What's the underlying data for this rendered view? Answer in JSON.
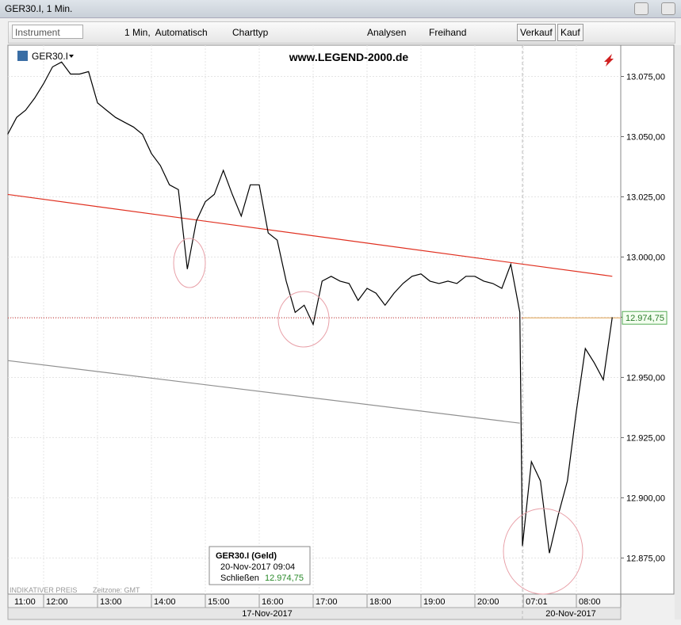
{
  "window": {
    "title": "GER30.I, 1 Min."
  },
  "toolbar": {
    "instrument": "Instrument",
    "interval": "1 Min,  Automatisch",
    "chart_type": "Charttyp",
    "analyses": "Analysen",
    "freehand": "Freihand",
    "sell": "Verkauf",
    "buy": "Kauf"
  },
  "chart_data": {
    "type": "line",
    "watermark": "www.LEGEND-2000.de",
    "x": [
      "11:20",
      "11:30",
      "11:40",
      "11:50",
      "12:00",
      "12:10",
      "12:20",
      "12:30",
      "12:40",
      "12:50",
      "13:00",
      "13:10",
      "13:20",
      "13:30",
      "13:40",
      "13:50",
      "14:00",
      "14:10",
      "14:20",
      "14:30",
      "14:40",
      "14:50",
      "15:00",
      "15:10",
      "15:20",
      "15:30",
      "15:40",
      "15:50",
      "16:00",
      "16:10",
      "16:20",
      "16:30",
      "16:40",
      "16:50",
      "17:00",
      "17:10",
      "17:20",
      "17:30",
      "17:40",
      "17:50",
      "18:00",
      "18:10",
      "18:20",
      "18:30",
      "18:40",
      "18:50",
      "19:00",
      "19:10",
      "19:20",
      "19:30",
      "19:40",
      "19:50",
      "20:00",
      "20:10",
      "20:20",
      "20:30",
      "20:40",
      "20:50",
      "07:00",
      "07:10",
      "07:20",
      "07:30",
      "07:40",
      "07:50",
      "08:00",
      "08:10",
      "08:20",
      "08:30",
      "08:40"
    ],
    "series": [
      {
        "name": "GER30.I",
        "color": "#000000",
        "values": [
          13051,
          13058,
          13061,
          13066,
          13072,
          13079,
          13081,
          13076,
          13076,
          13077,
          13064,
          13061,
          13058,
          13056,
          13054,
          13051,
          13043,
          13038,
          13030,
          13028,
          12995,
          13015,
          13023,
          13026,
          13036,
          13026,
          13017,
          13030,
          13030,
          13010,
          13007,
          12990,
          12977,
          12980,
          12972,
          12990,
          12992,
          12990,
          12989,
          12982,
          12987,
          12985,
          12980,
          12985,
          12989,
          12992,
          12993,
          12990,
          12989,
          12990,
          12989,
          12992,
          12992,
          12990,
          12989,
          12987,
          12997,
          12977,
          12880,
          12915,
          12907,
          12877,
          12893,
          12907,
          12936,
          12962,
          12956,
          12949,
          12975
        ]
      }
    ],
    "ylim": [
      12860,
      13088
    ],
    "yticks": [
      {
        "value": 12875,
        "label": "12.875,00"
      },
      {
        "value": 12900,
        "label": "12.900,00"
      },
      {
        "value": 12925,
        "label": "12.925,00"
      },
      {
        "value": 12950,
        "label": "12.950,00"
      },
      {
        "value": 12975,
        "label": "12.975,00"
      },
      {
        "value": 13000,
        "label": "13.000,00"
      },
      {
        "value": 13025,
        "label": "13.025,00"
      },
      {
        "value": 13050,
        "label": "13.050,00"
      },
      {
        "value": 13075,
        "label": "13.075,00"
      }
    ],
    "xticks": [
      "11:00",
      "12:00",
      "13:00",
      "14:00",
      "15:00",
      "16:00",
      "17:00",
      "18:00",
      "19:00",
      "20:00",
      "07:01",
      "08:00"
    ],
    "dates": [
      "17-Nov-2017",
      "20-Nov-2017"
    ],
    "trendlines": [
      {
        "color": "#e03020",
        "from": {
          "x": "11:20",
          "y": 13026
        },
        "to": {
          "x": "08:40",
          "y": 12992
        }
      },
      {
        "color": "#909090",
        "from": {
          "x": "11:20",
          "y": 12957
        },
        "to": {
          "x": "20:50",
          "y": 12931
        }
      }
    ],
    "last_price": {
      "value": 12974.75,
      "label": "12.974,75"
    },
    "footer": {
      "indicative": "INDIKATIVER PREIS",
      "timezone": "Zeitzone: GMT"
    },
    "info_box": {
      "title": "GER30.I (Geld)",
      "time": "20-Nov-2017 09:04",
      "close_label": "Schließen"
    }
  }
}
